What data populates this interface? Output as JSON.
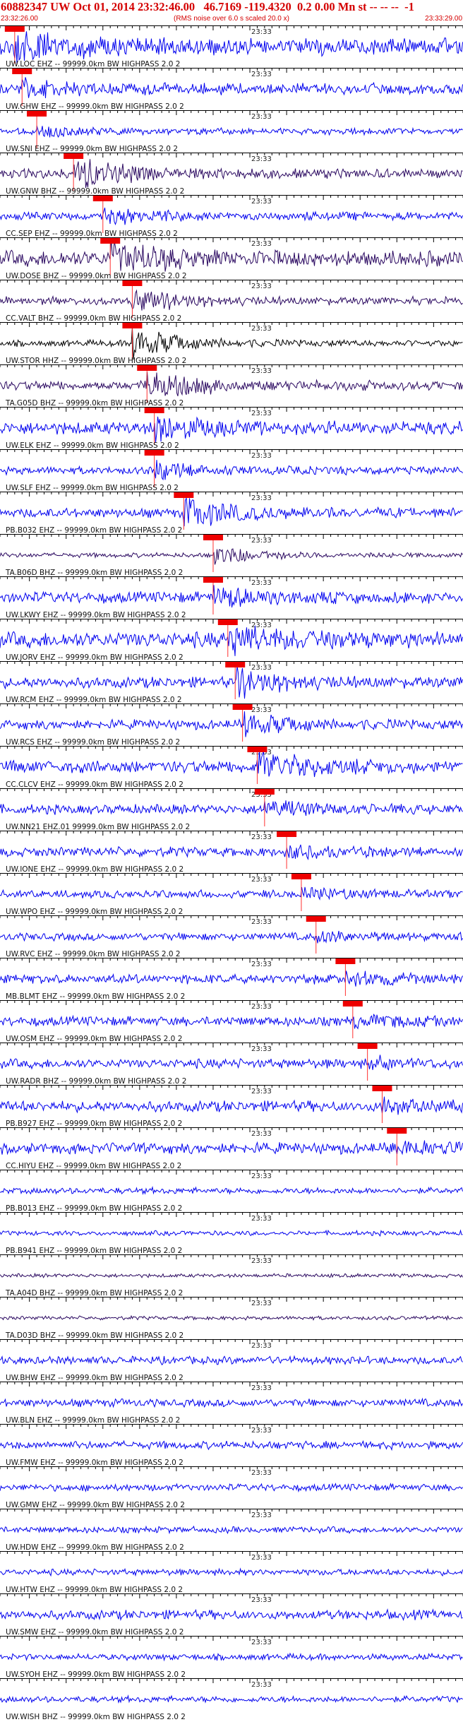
{
  "header": {
    "event_title": "60882347 UW Oct 01, 2014 23:32:46.00   46.7169 -119.4320  0.2 0.00 Mn st -- -- --  -1",
    "start_time": "23:32:26.00",
    "end_time": "23:33:29.00",
    "scale_note": "(RMS noise over 6.0 s scaled 20.0 x)"
  },
  "colors": {
    "trace_blue": "#0000ee",
    "trace_purple": "#2a0860",
    "trace_black": "#000000",
    "pick_red": "#ee0000",
    "pick_line": "#ff3030"
  },
  "chart_data": {
    "type": "seismogram-stack",
    "x_start": "23:32:26.00",
    "x_end": "23:33:29.00",
    "minute_mark": "23:33",
    "traces": [
      {
        "label": "UW.LOC EHZ -- 99999.0km BW  HIGHPASS  2.0  2",
        "color": "blue",
        "pick": "23:32:28",
        "amp": 0.55,
        "event": 0.9
      },
      {
        "label": "UW.GHW EHZ -- 99999.0km BW  HIGHPASS  2.0  2",
        "color": "blue",
        "pick": "23:32:29",
        "amp": 0.35,
        "event": 0.5
      },
      {
        "label": "UW.SNI EHZ -- 99999.0km BW  HIGHPASS  2.0  2",
        "color": "blue",
        "pick": "23:32:31",
        "amp": 0.2,
        "event": 0.3
      },
      {
        "label": "UW.GNW BHZ -- 99999.0km BW  HIGHPASS  2.0  2",
        "color": "purple",
        "pick": "23:32:36",
        "amp": 0.3,
        "event": 1.0
      },
      {
        "label": "CC.SEP EHZ -- 99999.0km BW  HIGHPASS  2.0  2",
        "color": "blue",
        "pick": "23:32:40",
        "amp": 0.25,
        "event": 0.5
      },
      {
        "label": "UW.DOSE BHZ -- 99999.0km BW  HIGHPASS  2.0  2",
        "color": "purple",
        "pick": "23:32:41",
        "amp": 0.5,
        "event": 1.0
      },
      {
        "label": "CC.VALT BHZ -- 99999.0km BW  HIGHPASS  2.0  2",
        "color": "purple",
        "pick": "23:32:44",
        "amp": 0.25,
        "event": 0.7
      },
      {
        "label": "UW.STOR HHZ -- 99999.0km BW  HIGHPASS  2.0  2",
        "color": "black",
        "pick": "23:32:44",
        "amp": 0.2,
        "event": 1.0
      },
      {
        "label": "TA.G05D BHZ -- 99999.0km BW  HIGHPASS  2.0  2",
        "color": "purple",
        "pick": "23:32:46",
        "amp": 0.3,
        "event": 0.9
      },
      {
        "label": "UW.ELK EHZ -- 99999.0km BW  HIGHPASS  2.0  2",
        "color": "blue",
        "pick": "23:32:47",
        "amp": 0.4,
        "event": 0.8
      },
      {
        "label": "UW.SLF EHZ -- 99999.0km BW  HIGHPASS  2.0  2",
        "color": "blue",
        "pick": "23:32:47",
        "amp": 0.25,
        "event": 0.5
      },
      {
        "label": "PB.B032 EHZ -- 99999.0km BW  HIGHPASS  2.0  2",
        "color": "blue",
        "pick": "23:32:51",
        "amp": 0.3,
        "event": 1.0
      },
      {
        "label": "TA.B06D BHZ -- 99999.0km BW  HIGHPASS  2.0  2",
        "color": "purple",
        "pick": "23:32:55",
        "amp": 0.15,
        "event": 0.6
      },
      {
        "label": "UW.LKWY EHZ -- 99999.0km BW  HIGHPASS  2.0  2",
        "color": "blue",
        "pick": "23:32:55",
        "amp": 0.35,
        "event": 0.6
      },
      {
        "label": "UW.JORV EHZ -- 99999.0km BW  HIGHPASS  2.0  2",
        "color": "blue",
        "pick": "23:32:57",
        "amp": 0.5,
        "event": 1.0
      },
      {
        "label": "UW.RCM EHZ -- 99999.0km BW  HIGHPASS  2.0  2",
        "color": "blue",
        "pick": "23:32:58",
        "amp": 0.35,
        "event": 0.8
      },
      {
        "label": "UW.RCS EHZ -- 99999.0km BW  HIGHPASS  2.0  2",
        "color": "blue",
        "pick": "23:32:59",
        "amp": 0.3,
        "event": 0.7
      },
      {
        "label": "CC.CLCV EHZ -- 99999.0km BW  HIGHPASS  2.0  2",
        "color": "blue",
        "pick": "23:33:01",
        "amp": 0.4,
        "event": 1.0
      },
      {
        "label": "UW.NN21 EHZ.01 99999.0km BW  HIGHPASS  2.0  2",
        "color": "blue",
        "pick": "23:33:02",
        "amp": 0.3,
        "event": 0.5
      },
      {
        "label": "UW.IONE EHZ -- 99999.0km BW  HIGHPASS  2.0  2",
        "color": "blue",
        "pick": "23:33:05",
        "amp": 0.3,
        "event": 0.35
      },
      {
        "label": "UW.WPO EHZ -- 99999.0km BW  HIGHPASS  2.0  2",
        "color": "blue",
        "pick": "23:33:07",
        "amp": 0.25,
        "event": 0.35
      },
      {
        "label": "UW.RVC EHZ -- 99999.0km BW  HIGHPASS  2.0  2",
        "color": "blue",
        "pick": "23:33:09",
        "amp": 0.25,
        "event": 0.3
      },
      {
        "label": "MB.BLMT EHZ -- 99999.0km BW  HIGHPASS  2.0  2",
        "color": "blue",
        "pick": "23:33:13",
        "amp": 0.3,
        "event": 0.4
      },
      {
        "label": "UW.OSM EHZ -- 99999.0km BW  HIGHPASS  2.0  2",
        "color": "blue",
        "pick": "23:33:14",
        "amp": 0.3,
        "event": 0.3
      },
      {
        "label": "UW.RADR BHZ -- 99999.0km BW  HIGHPASS  2.0  2",
        "color": "blue",
        "pick": "23:33:16",
        "amp": 0.3,
        "event": 0.3
      },
      {
        "label": "PB.B927 EHZ -- 99999.0km BW  HIGHPASS  2.0  2",
        "color": "blue",
        "pick": "23:33:18",
        "amp": 0.35,
        "event": 0.4
      },
      {
        "label": "CC.HIYU EHZ -- 99999.0km BW  HIGHPASS  2.0  2",
        "color": "blue",
        "pick": "23:33:20",
        "amp": 0.35,
        "event": 0.4
      },
      {
        "label": "PB.B013 EHZ -- 99999.0km BW  HIGHPASS  2.0  2",
        "color": "blue",
        "pick": null,
        "amp": 0.2,
        "event": 0
      },
      {
        "label": "PB.B941 EHZ -- 99999.0km BW  HIGHPASS  2.0  2",
        "color": "blue",
        "pick": null,
        "amp": 0.15,
        "event": 0
      },
      {
        "label": "TA.A04D BHZ -- 99999.0km BW  HIGHPASS  2.0  2",
        "color": "purple",
        "pick": null,
        "amp": 0.12,
        "event": 0
      },
      {
        "label": "TA.D03D BHZ -- 99999.0km BW  HIGHPASS  2.0  2",
        "color": "purple",
        "pick": null,
        "amp": 0.12,
        "event": 0
      },
      {
        "label": "UW.BHW EHZ -- 99999.0km BW  HIGHPASS  2.0  2",
        "color": "blue",
        "pick": null,
        "amp": 0.25,
        "event": 0
      },
      {
        "label": "UW.BLN EHZ -- 99999.0km BW  HIGHPASS  2.0  2",
        "color": "blue",
        "pick": null,
        "amp": 0.25,
        "event": 0
      },
      {
        "label": "UW.FMW EHZ -- 99999.0km BW  HIGHPASS  2.0  2",
        "color": "blue",
        "pick": null,
        "amp": 0.25,
        "event": 0
      },
      {
        "label": "UW.GMW EHZ -- 99999.0km BW  HIGHPASS  2.0  2",
        "color": "blue",
        "pick": null,
        "amp": 0.22,
        "event": 0
      },
      {
        "label": "UW.HDW EHZ -- 99999.0km BW  HIGHPASS  2.0  2",
        "color": "blue",
        "pick": null,
        "amp": 0.2,
        "event": 0
      },
      {
        "label": "UW.HTW EHZ -- 99999.0km BW  HIGHPASS  2.0  2",
        "color": "blue",
        "pick": null,
        "amp": 0.2,
        "event": 0
      },
      {
        "label": "UW.SMW EHZ -- 99999.0km BW  HIGHPASS  2.0  2",
        "color": "blue",
        "pick": null,
        "amp": 0.3,
        "event": 0
      },
      {
        "label": "UW.SYOH EHZ -- 99999.0km BW  HIGHPASS  2.0  2",
        "color": "blue",
        "pick": null,
        "amp": 0.2,
        "event": 0
      },
      {
        "label": "UW.WISH BHZ -- 99999.0km BW  HIGHPASS  2.0  2",
        "color": "blue",
        "pick": null,
        "amp": 0.2,
        "event": 0
      }
    ]
  }
}
